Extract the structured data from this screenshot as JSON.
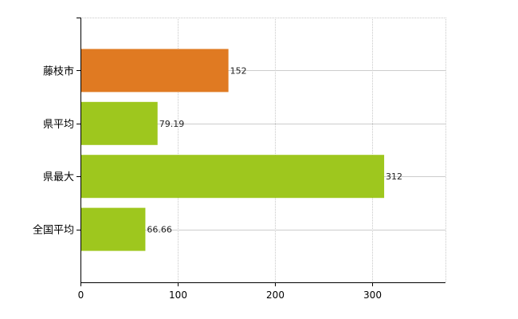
{
  "chart_data": {
    "type": "bar",
    "orientation": "horizontal",
    "title": "",
    "xlabel": "",
    "ylabel": "",
    "categories": [
      "藤枝市",
      "県平均",
      "県最大",
      "全国平均"
    ],
    "values": [
      152,
      79.19,
      312,
      66.66
    ],
    "value_labels": [
      "152",
      "79.19",
      "312",
      "66.66"
    ],
    "bar_colors": [
      "#e07a22",
      "#9ec71e",
      "#9ec71e",
      "#9ec71e"
    ],
    "xlim": [
      0,
      375
    ],
    "xticks": [
      0,
      100,
      200,
      300
    ],
    "grid": true,
    "legend": "none"
  }
}
